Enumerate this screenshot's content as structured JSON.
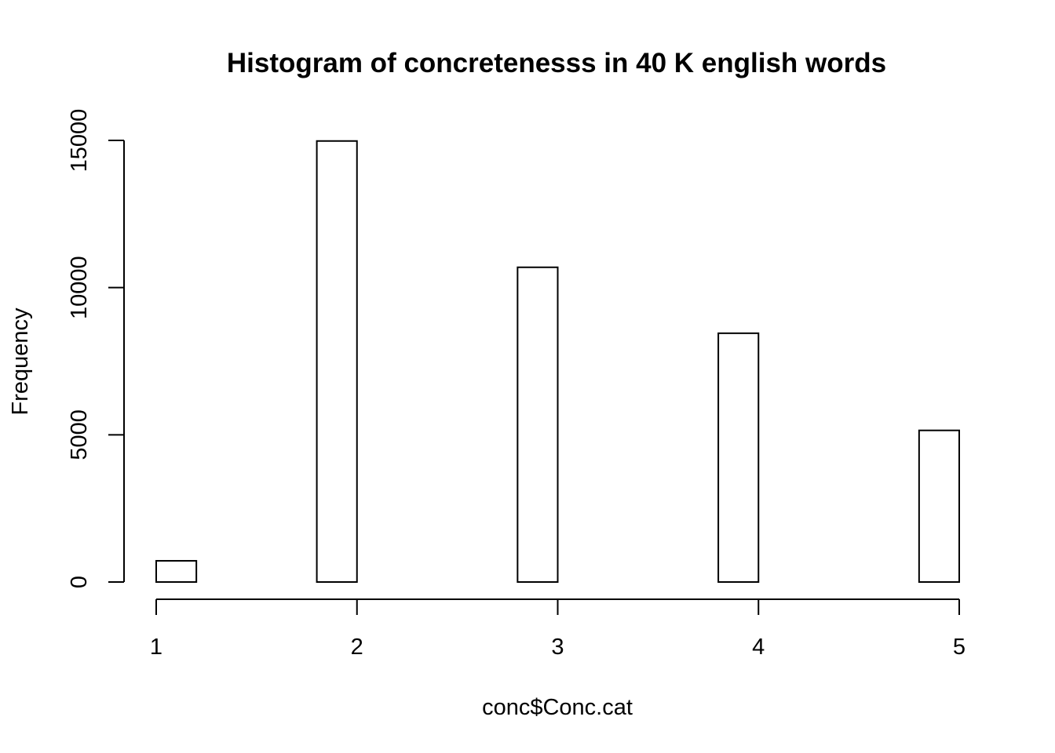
{
  "chart_data": {
    "type": "bar",
    "title": "Histogram of concretenesss in 40 K english words",
    "xlabel": "conc$Conc.cat",
    "ylabel": "Frequency",
    "bins": [
      {
        "start": 1.0,
        "end": 1.2,
        "count": 720
      },
      {
        "start": 1.2,
        "end": 1.4,
        "count": 0
      },
      {
        "start": 1.4,
        "end": 1.6,
        "count": 0
      },
      {
        "start": 1.6,
        "end": 1.8,
        "count": 0
      },
      {
        "start": 1.8,
        "end": 2.0,
        "count": 14980
      },
      {
        "start": 2.0,
        "end": 2.2,
        "count": 0
      },
      {
        "start": 2.2,
        "end": 2.4,
        "count": 0
      },
      {
        "start": 2.4,
        "end": 2.6,
        "count": 0
      },
      {
        "start": 2.6,
        "end": 2.8,
        "count": 0
      },
      {
        "start": 2.8,
        "end": 3.0,
        "count": 10690
      },
      {
        "start": 3.0,
        "end": 3.2,
        "count": 0
      },
      {
        "start": 3.2,
        "end": 3.4,
        "count": 0
      },
      {
        "start": 3.4,
        "end": 3.6,
        "count": 0
      },
      {
        "start": 3.6,
        "end": 3.8,
        "count": 0
      },
      {
        "start": 3.8,
        "end": 4.0,
        "count": 8450
      },
      {
        "start": 4.0,
        "end": 4.2,
        "count": 0
      },
      {
        "start": 4.2,
        "end": 4.4,
        "count": 0
      },
      {
        "start": 4.4,
        "end": 4.6,
        "count": 0
      },
      {
        "start": 4.6,
        "end": 4.8,
        "count": 0
      },
      {
        "start": 4.8,
        "end": 5.0,
        "count": 5150
      }
    ],
    "xlim": [
      1,
      5
    ],
    "ylim": [
      0,
      15000
    ],
    "x_ticks": [
      "1",
      "2",
      "3",
      "4",
      "5"
    ],
    "y_ticks": [
      "0",
      "5000",
      "10000",
      "15000"
    ],
    "grid": false,
    "colors": {
      "bar_fill": "#ffffff",
      "bar_stroke": "#000000"
    }
  }
}
